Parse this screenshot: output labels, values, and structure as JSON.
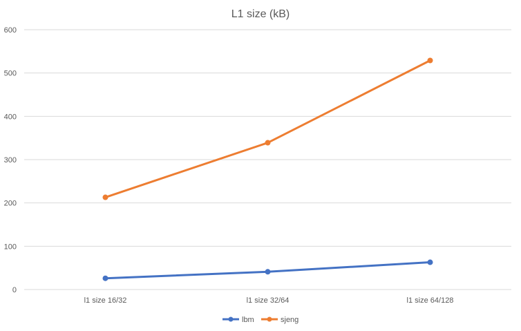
{
  "chart_data": {
    "type": "line",
    "title": "L1 size (kB)",
    "xlabel": "",
    "ylabel": "",
    "categories": [
      "l1 size 16/32",
      "l1 size 32/64",
      "l1 size 64/128"
    ],
    "ylim": [
      0,
      600
    ],
    "yticks": [
      0,
      100,
      200,
      300,
      400,
      500,
      600
    ],
    "grid": true,
    "legend_position": "bottom",
    "series": [
      {
        "name": "lbm",
        "color": "#4472c4",
        "values": [
          26,
          41,
          63
        ]
      },
      {
        "name": "sjeng",
        "color": "#ed7d31",
        "values": [
          213,
          339,
          529
        ]
      }
    ]
  }
}
